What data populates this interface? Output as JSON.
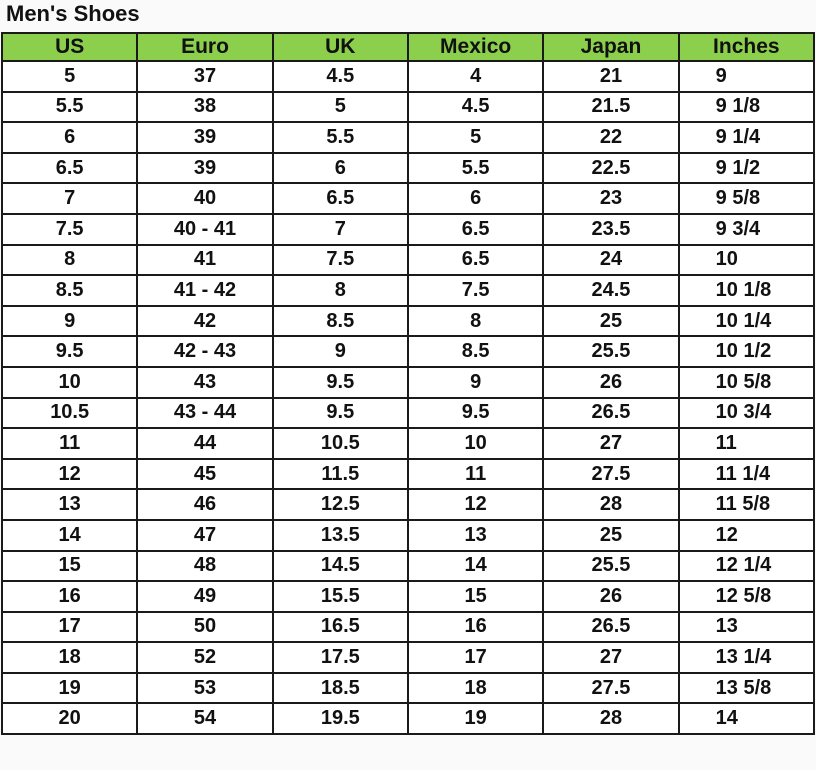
{
  "title": "Men's Shoes",
  "header_color": "#8ccf4c",
  "columns": [
    "US",
    "Euro",
    "UK",
    "Mexico",
    "Japan",
    "Inches"
  ],
  "rows": [
    [
      "5",
      "37",
      "4.5",
      "4",
      "21",
      "9"
    ],
    [
      "5.5",
      "38",
      "5",
      "4.5",
      "21.5",
      "9 1/8"
    ],
    [
      "6",
      "39",
      "5.5",
      "5",
      "22",
      "9 1/4"
    ],
    [
      "6.5",
      "39",
      "6",
      "5.5",
      "22.5",
      "9 1/2"
    ],
    [
      "7",
      "40",
      "6.5",
      "6",
      "23",
      "9 5/8"
    ],
    [
      "7.5",
      "40 - 41",
      "7",
      "6.5",
      "23.5",
      "9 3/4"
    ],
    [
      "8",
      "41",
      "7.5",
      "6.5",
      "24",
      "10"
    ],
    [
      "8.5",
      "41 - 42",
      "8",
      "7.5",
      "24.5",
      "10 1/8"
    ],
    [
      "9",
      "42",
      "8.5",
      "8",
      "25",
      "10 1/4"
    ],
    [
      "9.5",
      "42 - 43",
      "9",
      "8.5",
      "25.5",
      "10 1/2"
    ],
    [
      "10",
      "43",
      "9.5",
      "9",
      "26",
      "10 5/8"
    ],
    [
      "10.5",
      "43 - 44",
      "9.5",
      "9.5",
      "26.5",
      "10 3/4"
    ],
    [
      "11",
      "44",
      "10.5",
      "10",
      "27",
      "11"
    ],
    [
      "12",
      "45",
      "11.5",
      "11",
      "27.5",
      "11 1/4"
    ],
    [
      "13",
      "46",
      "12.5",
      "12",
      "28",
      "11 5/8"
    ],
    [
      "14",
      "47",
      "13.5",
      "13",
      "25",
      "12"
    ],
    [
      "15",
      "48",
      "14.5",
      "14",
      "25.5",
      "12 1/4"
    ],
    [
      "16",
      "49",
      "15.5",
      "15",
      "26",
      "12 5/8"
    ],
    [
      "17",
      "50",
      "16.5",
      "16",
      "26.5",
      "13"
    ],
    [
      "18",
      "52",
      "17.5",
      "17",
      "27",
      "13 1/4"
    ],
    [
      "19",
      "53",
      "18.5",
      "18",
      "27.5",
      "13 5/8"
    ],
    [
      "20",
      "54",
      "19.5",
      "19",
      "28",
      "14"
    ]
  ]
}
